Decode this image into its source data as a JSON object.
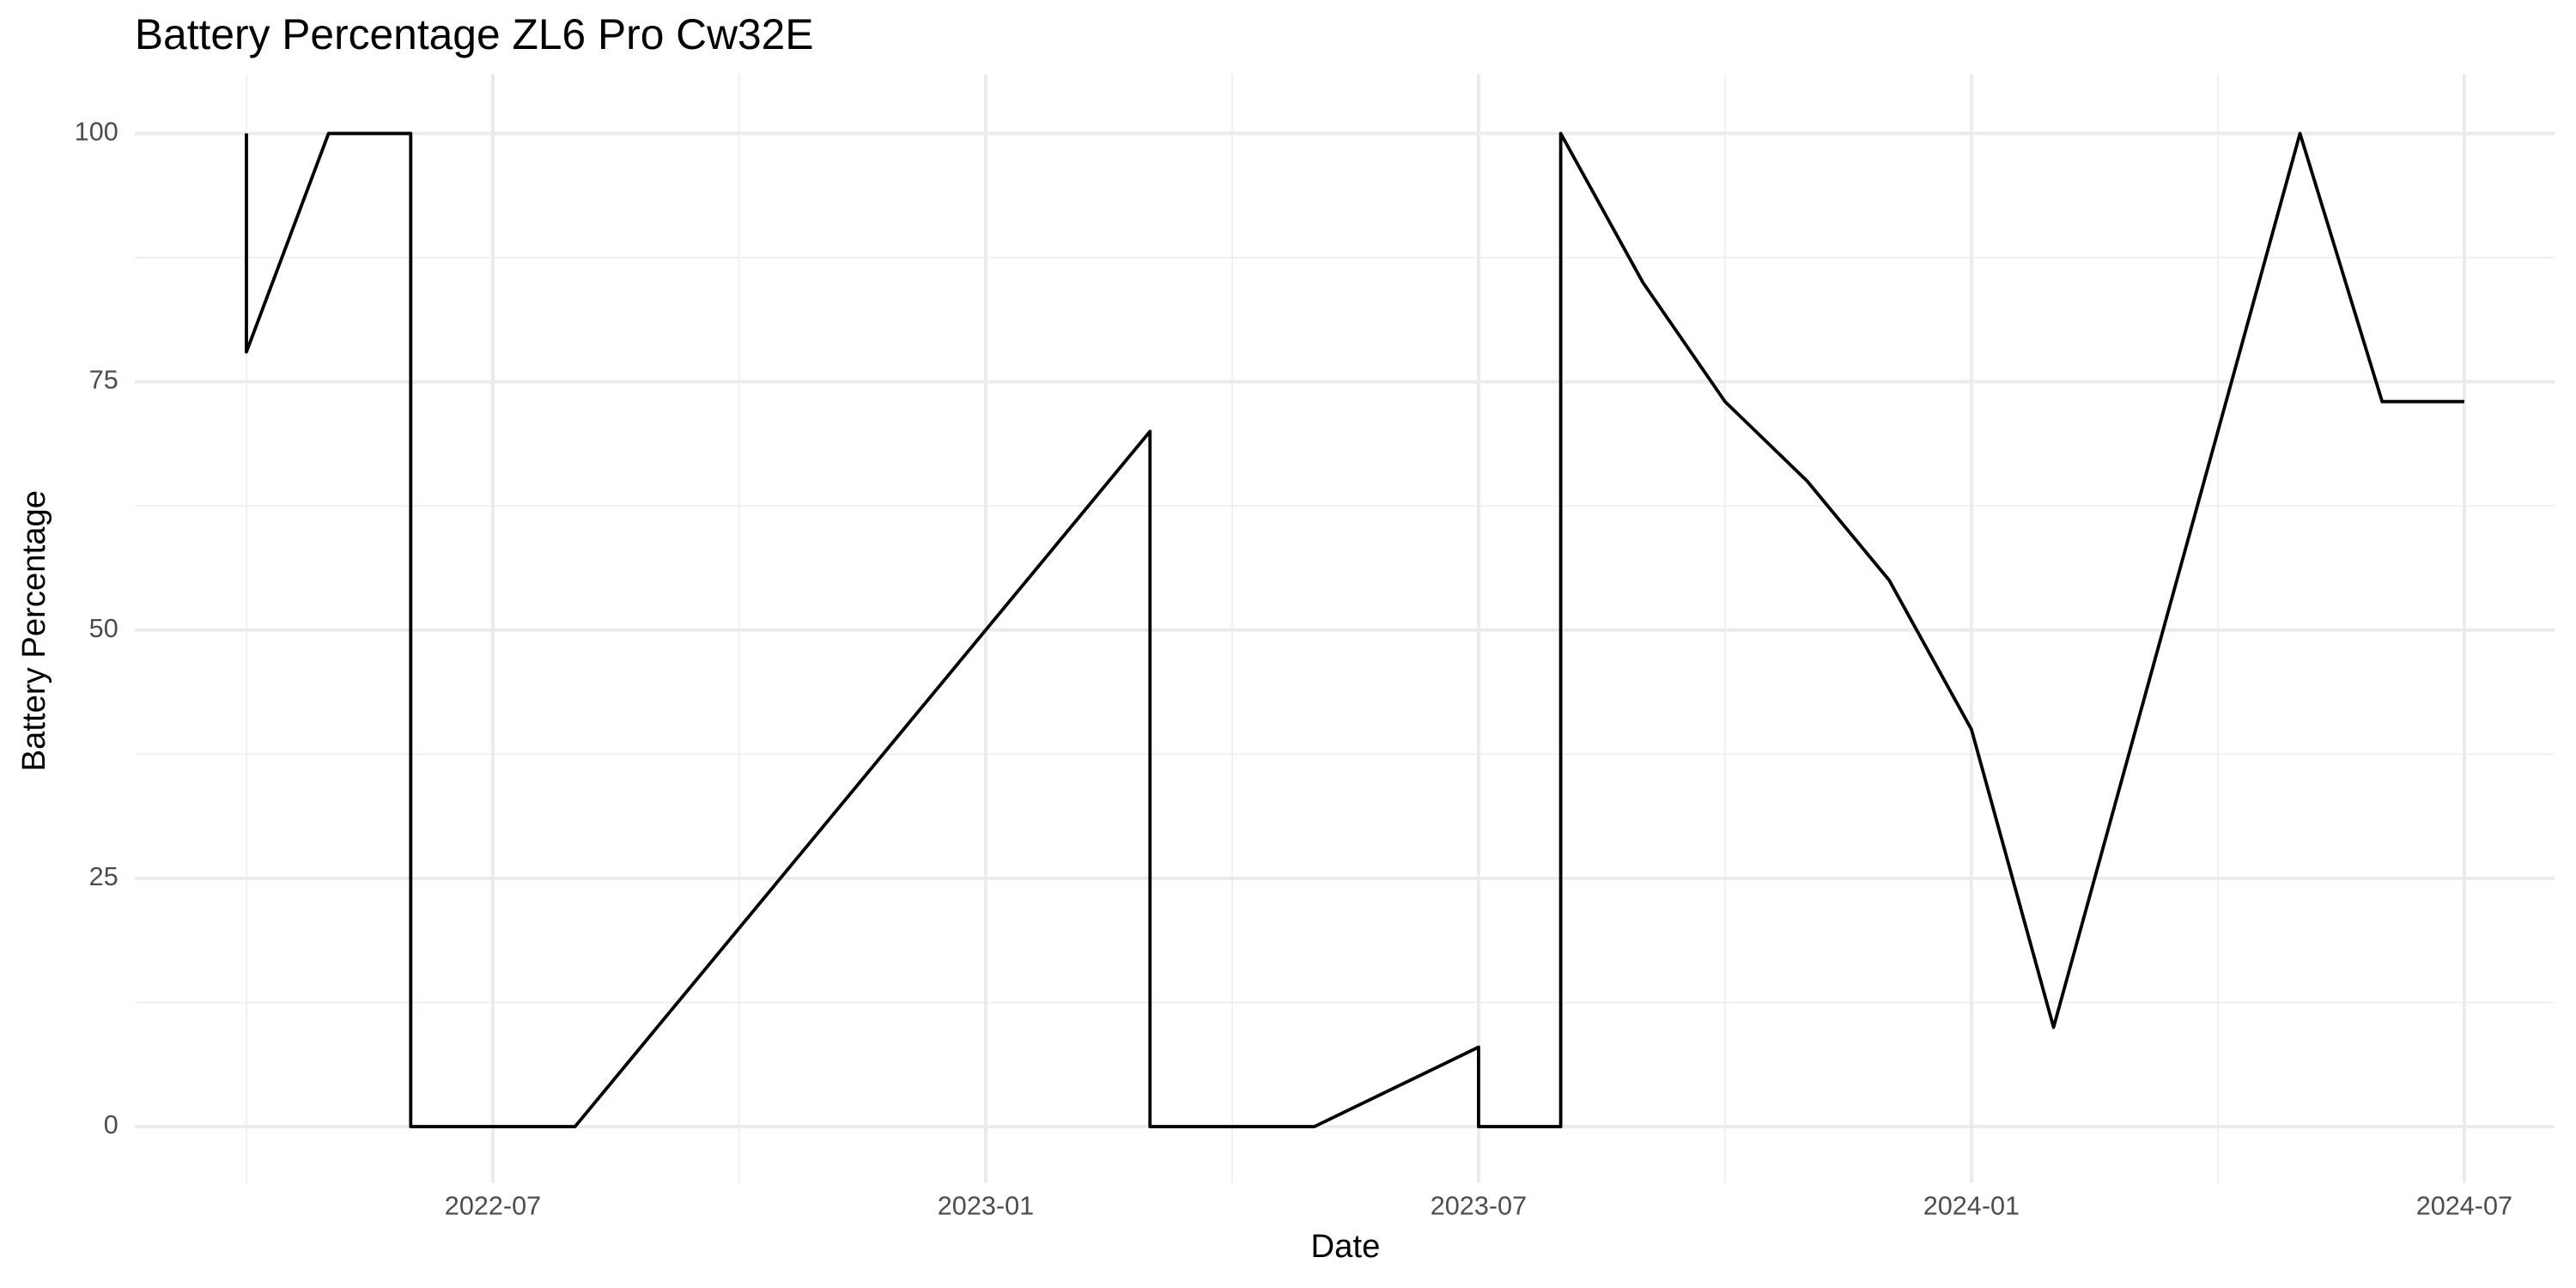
{
  "chart_data": {
    "type": "line",
    "title": "Battery Percentage ZL6 Pro Cw32E",
    "x_label": "Date",
    "y_label": "Battery Percentage",
    "x": [
      "2022-04",
      "2022-04",
      "2022-05",
      "2022-06",
      "2022-06",
      "2022-08",
      "2023-03",
      "2023-03",
      "2023-05",
      "2023-07",
      "2023-07",
      "2023-08",
      "2023-08",
      "2023-09",
      "2023-10",
      "2023-11",
      "2023-12",
      "2024-01",
      "2024-02",
      "2024-05",
      "2024-06",
      "2024-07"
    ],
    "series": [
      {
        "name": "Battery Percentage",
        "color": "#000000",
        "values": [
          100,
          78,
          100,
          100,
          0,
          0,
          70,
          0,
          0,
          8,
          0,
          0,
          100,
          85,
          73,
          65,
          55,
          40,
          10,
          100,
          73,
          73
        ]
      }
    ],
    "xlim": [
      "2022-03",
      "2024-08"
    ],
    "xticks": [
      "2022-07",
      "2023-01",
      "2023-07",
      "2024-01",
      "2024-07"
    ],
    "xminorticks": [
      "2022-04",
      "2022-10",
      "2023-04",
      "2023-10",
      "2024-04"
    ],
    "ylim": [
      -5,
      105
    ],
    "yticks": [
      0,
      25,
      50,
      75,
      100
    ],
    "yminorticks": [
      12.5,
      37.5,
      62.5,
      87.5
    ],
    "grid": true
  }
}
